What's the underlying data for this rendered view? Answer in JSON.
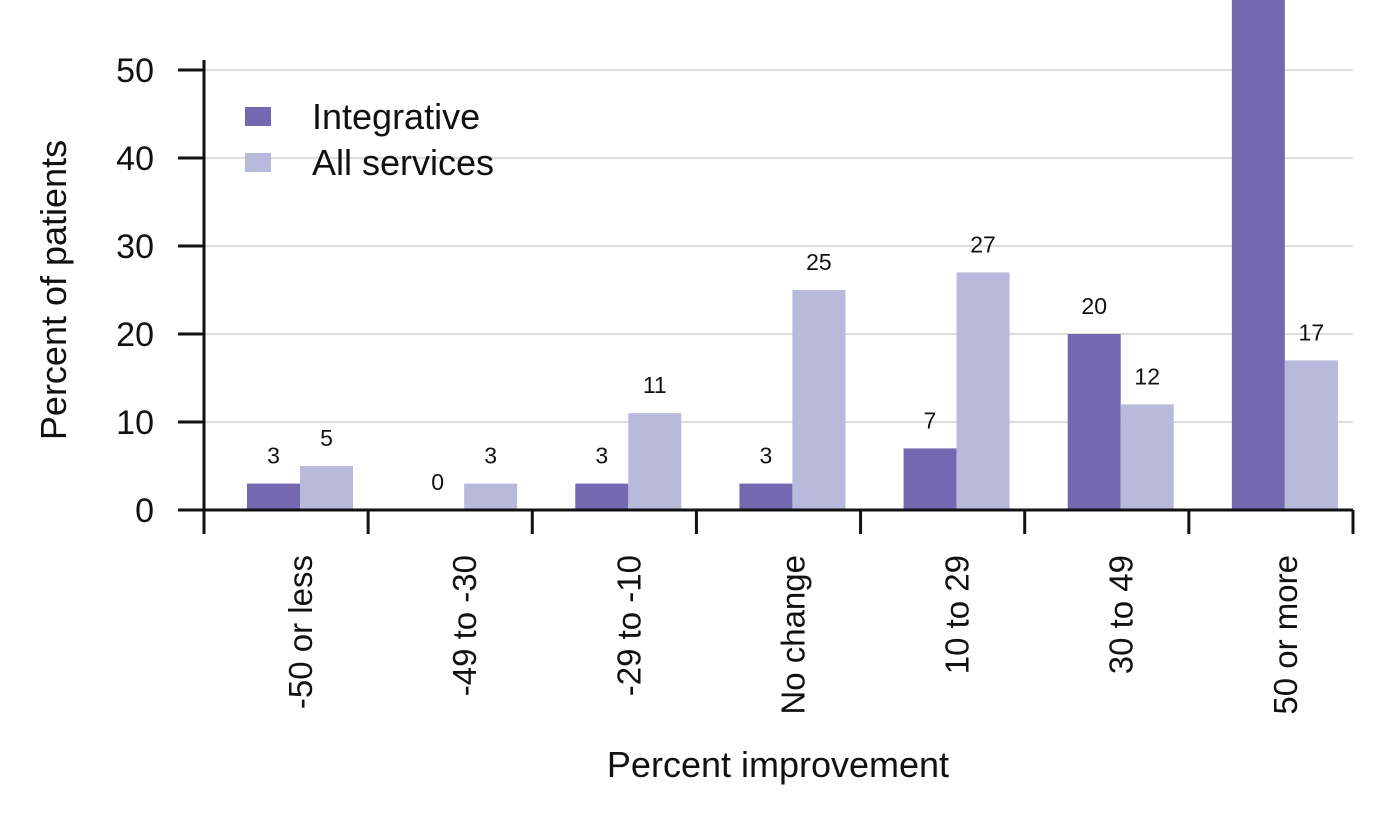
{
  "chart_data": {
    "type": "bar",
    "title": "",
    "xlabel": "Percent improvement",
    "ylabel": "Percent of patients",
    "ylim": [
      0,
      57
    ],
    "yticks": [
      "0",
      "10",
      "20",
      "30",
      "40",
      "50"
    ],
    "grid": true,
    "legend_position": "top-left",
    "categories": [
      "-50 or less",
      "-49 to -30",
      "-29 to -10",
      "No change",
      "10 to 29",
      "30 to 49",
      "50 or more"
    ],
    "series": [
      {
        "name": "Integrative",
        "color": "#7469b0",
        "values": [
          3,
          0,
          3,
          3,
          7,
          20,
          60
        ],
        "labels": [
          "3",
          "0",
          "3",
          "3",
          "7",
          "20",
          ""
        ]
      },
      {
        "name": "All services",
        "color": "#b9b9dc",
        "values": [
          5,
          3,
          11,
          25,
          27,
          12,
          17
        ],
        "labels": [
          "5",
          "3",
          "11",
          "25",
          "27",
          "12",
          "17"
        ]
      }
    ]
  }
}
